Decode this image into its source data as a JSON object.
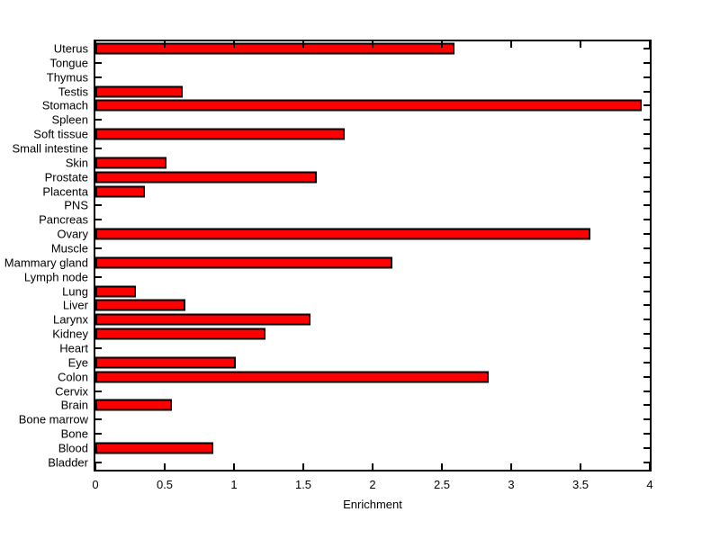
{
  "chart_data": {
    "type": "bar",
    "orientation": "horizontal",
    "title": "",
    "xlabel": "Enrichment",
    "ylabel": "",
    "xlim": [
      0,
      4
    ],
    "x_ticks": [
      0,
      0.5,
      1,
      1.5,
      2,
      2.5,
      3,
      3.5,
      4
    ],
    "x_tick_labels": [
      "0",
      "0.5",
      "1",
      "1.5",
      "2",
      "2.5",
      "3",
      "3.5",
      "4"
    ],
    "grid": false,
    "legend": null,
    "bar_color": "#FF0000",
    "bar_edge_color": "#000000",
    "background_color": "#FFFFFF",
    "categories_top_to_bottom": [
      "Uterus",
      "Tongue",
      "Thymus",
      "Testis",
      "Stomach",
      "Spleen",
      "Soft tissue",
      "Small intestine",
      "Skin",
      "Prostate",
      "Placenta",
      "PNS",
      "Pancreas",
      "Ovary",
      "Muscle",
      "Mammary gland",
      "Lymph node",
      "Lung",
      "Liver",
      "Larynx",
      "Kidney",
      "Heart",
      "Eye",
      "Colon",
      "Cervix",
      "Brain",
      "Bone marrow",
      "Bone",
      "Blood",
      "Bladder"
    ],
    "values": [
      2.59,
      0,
      0,
      0.63,
      3.94,
      0,
      1.8,
      0,
      0.51,
      1.6,
      0.36,
      0,
      0,
      3.57,
      0,
      2.14,
      0,
      0.29,
      0.65,
      1.55,
      1.23,
      0,
      1.01,
      2.84,
      0,
      0.55,
      0,
      0,
      0.85,
      0
    ]
  }
}
